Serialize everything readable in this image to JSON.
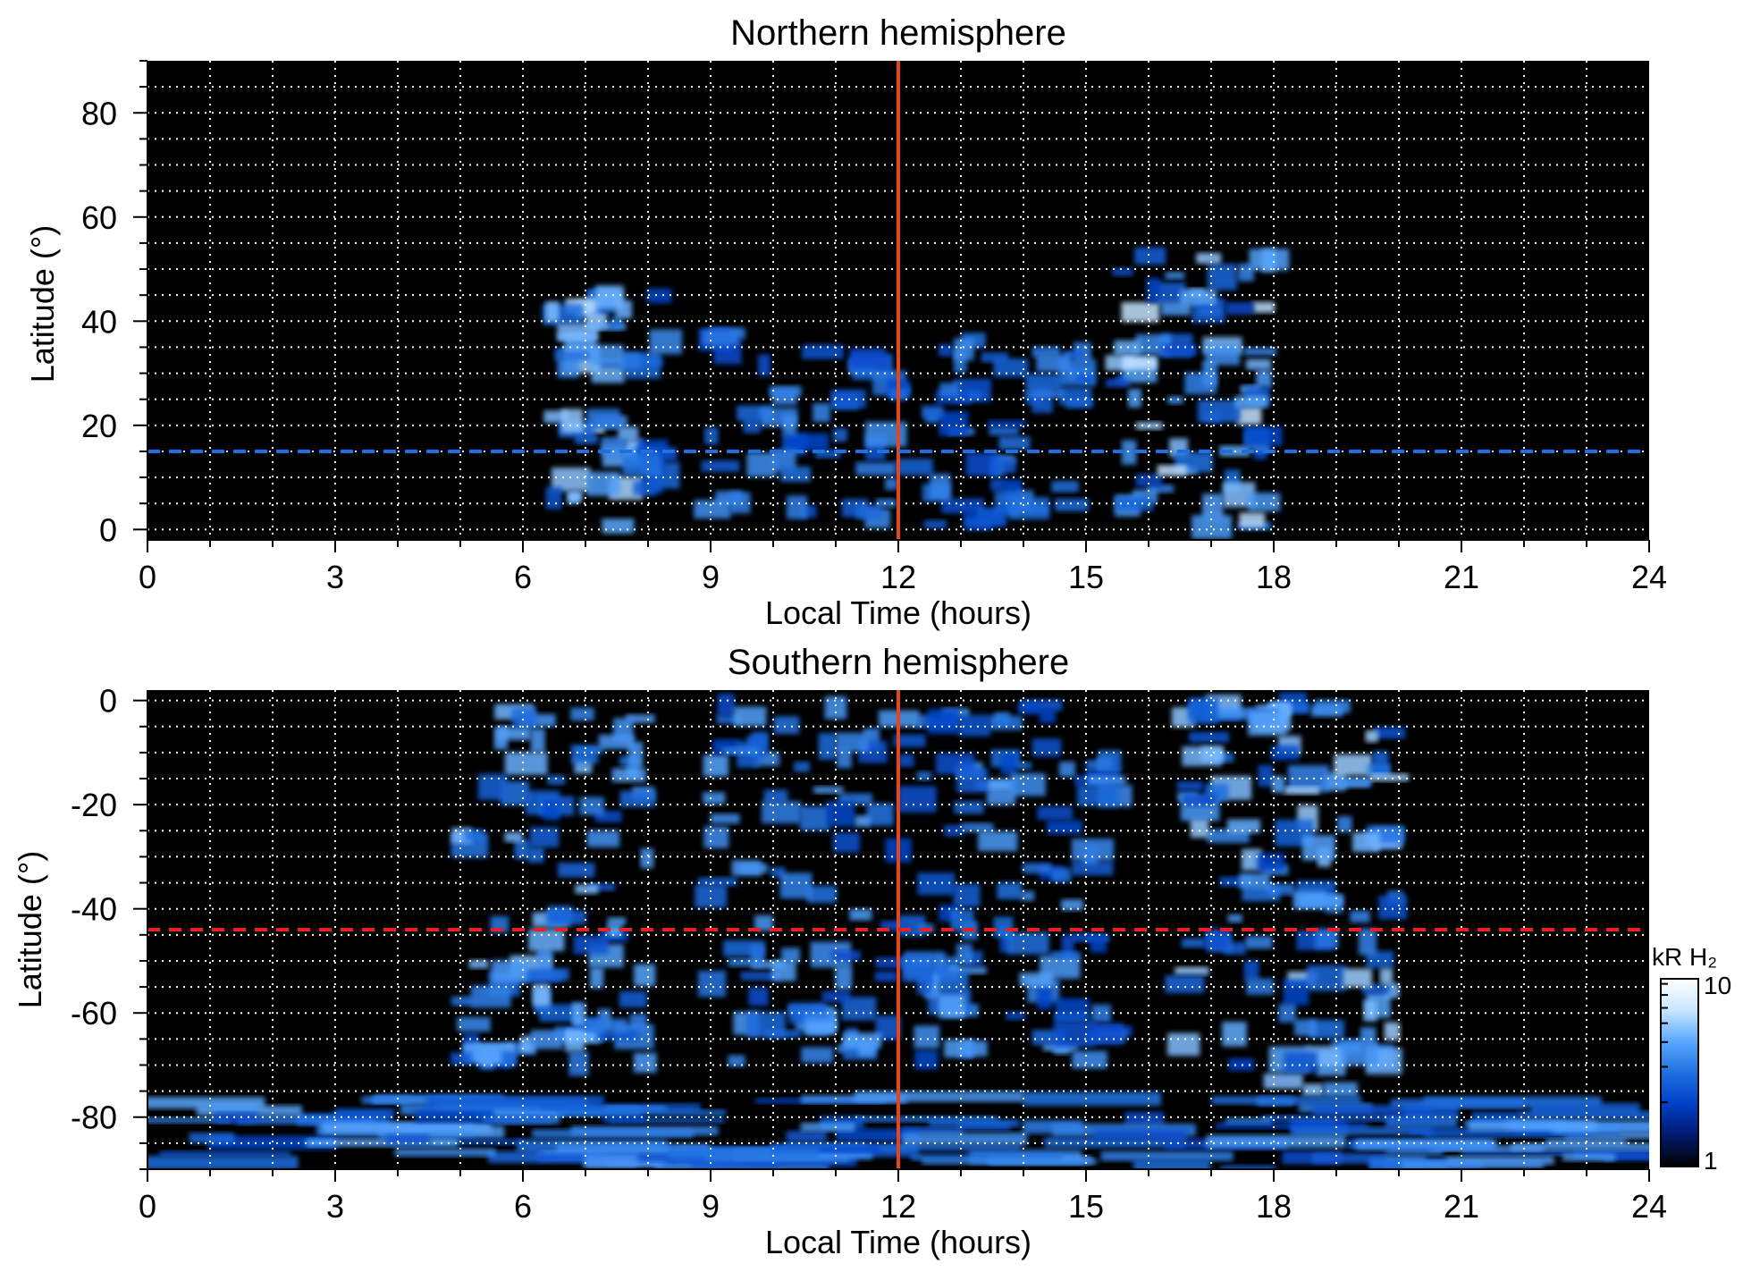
{
  "chart_data": [
    {
      "type": "heatmap",
      "title": "Northern hemisphere",
      "xlabel": "Local Time (hours)",
      "ylabel": "Latitude (°)",
      "xlim": [
        0,
        24
      ],
      "ylim": [
        -2,
        90
      ],
      "xticks": [
        "0",
        "3",
        "6",
        "9",
        "12",
        "15",
        "18",
        "21",
        "24"
      ],
      "yticks": [
        "0",
        "20",
        "40",
        "60",
        "80"
      ],
      "xtick_values": [
        0,
        3,
        6,
        9,
        12,
        15,
        18,
        21,
        24
      ],
      "ytick_values": [
        0,
        20,
        40,
        60,
        80
      ],
      "grid": true,
      "reference_lines": [
        {
          "orientation": "vertical",
          "value": 12,
          "color": "#e8441c",
          "style": "solid"
        },
        {
          "orientation": "horizontal",
          "value": 15,
          "color": "#1f6fe0",
          "style": "dashed"
        }
      ],
      "emission_regions": [
        {
          "region": "dawn",
          "lt": [
            6.3,
            8.3
          ],
          "lat": [
            0,
            46
          ],
          "intensity": 8
        },
        {
          "region": "noon",
          "lt": [
            9,
            15
          ],
          "lat": [
            0,
            38
          ],
          "intensity": 4
        },
        {
          "region": "dusk",
          "lt": [
            15.5,
            18
          ],
          "lat": [
            0,
            54
          ],
          "intensity": 8
        }
      ]
    },
    {
      "type": "heatmap",
      "title": "Southern hemisphere",
      "xlabel": "Local Time (hours)",
      "ylabel": "Latitude (°)",
      "xlim": [
        0,
        24
      ],
      "ylim": [
        -90,
        2
      ],
      "xticks": [
        "0",
        "3",
        "6",
        "9",
        "12",
        "15",
        "18",
        "21",
        "24"
      ],
      "yticks": [
        "0",
        "-20",
        "-40",
        "-60",
        "-80"
      ],
      "xtick_values": [
        0,
        3,
        6,
        9,
        12,
        15,
        18,
        21,
        24
      ],
      "ytick_values": [
        0,
        -20,
        -40,
        -60,
        -80
      ],
      "grid": true,
      "reference_lines": [
        {
          "orientation": "vertical",
          "value": 12,
          "color": "#e8441c",
          "style": "solid"
        },
        {
          "orientation": "horizontal",
          "value": -44,
          "color": "#e82020",
          "style": "dashed"
        }
      ],
      "emission_regions": [
        {
          "region": "dawn",
          "lt": [
            5,
            8
          ],
          "lat": [
            -70,
            0
          ],
          "intensity": 6
        },
        {
          "region": "noon",
          "lt": [
            9,
            15.5
          ],
          "lat": [
            -70,
            0
          ],
          "intensity": 5
        },
        {
          "region": "dusk",
          "lt": [
            16.5,
            20
          ],
          "lat": [
            -75,
            0
          ],
          "intensity": 7
        },
        {
          "region": "polar",
          "lt": [
            0,
            24
          ],
          "lat": [
            -90,
            -76
          ],
          "intensity": 5
        }
      ]
    }
  ],
  "colorbar": {
    "label": "kR H₂",
    "max_label": "10",
    "min_label": "1",
    "scale": "log",
    "range": [
      1,
      10
    ],
    "colors": [
      "#000000",
      "#001a6e",
      "#0040c8",
      "#1f6fe0",
      "#5aa8ff",
      "#c8e6ff",
      "#ffffff"
    ]
  }
}
